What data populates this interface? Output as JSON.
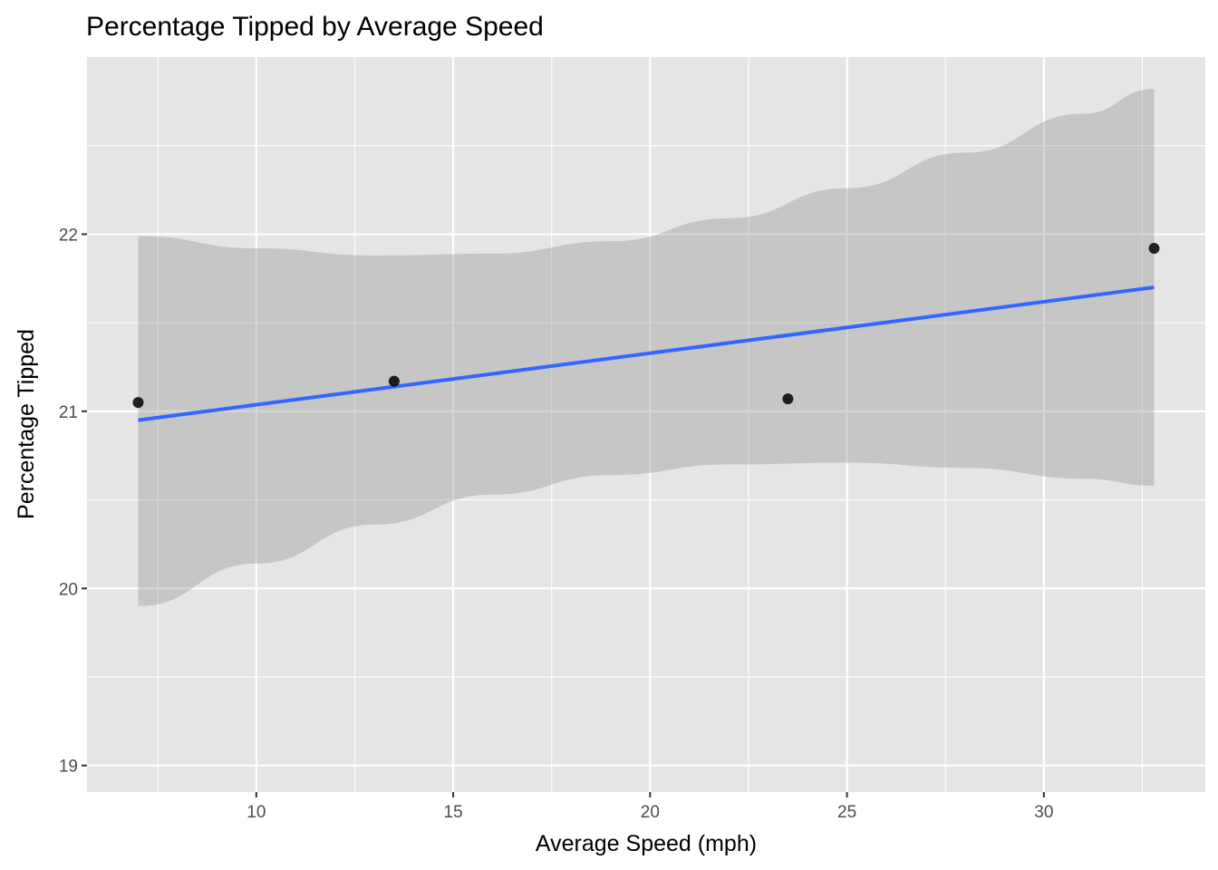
{
  "chart_data": {
    "type": "scatter",
    "title": "Percentage Tipped by Average Speed",
    "xlabel": "Average Speed (mph)",
    "ylabel": "Percentage Tipped",
    "xlim": [
      5.7,
      34.1
    ],
    "ylim": [
      18.85,
      23.0
    ],
    "x_ticks": [
      10,
      15,
      20,
      25,
      30
    ],
    "x_tick_labels": [
      "10",
      "15",
      "20",
      "25",
      "30"
    ],
    "y_ticks": [
      19,
      20,
      21,
      22
    ],
    "y_tick_labels": [
      "19",
      "20",
      "21",
      "22"
    ],
    "x_minor_ticks": [
      7.5,
      12.5,
      17.5,
      22.5,
      27.5,
      32.5
    ],
    "y_minor_ticks": [
      19.5,
      20.5,
      21.5,
      22.5
    ],
    "grid": true,
    "points": [
      {
        "x": 7.0,
        "y": 21.05
      },
      {
        "x": 13.5,
        "y": 21.17
      },
      {
        "x": 23.5,
        "y": 21.07
      },
      {
        "x": 32.8,
        "y": 21.92
      }
    ],
    "trend_line": {
      "method": "lm",
      "x": [
        7.0,
        32.8
      ],
      "y": [
        20.95,
        21.7
      ],
      "color": "#3366ff"
    },
    "confidence_band": {
      "x": [
        7.0,
        10.0,
        13.0,
        16.0,
        19.0,
        22.0,
        25.0,
        28.0,
        31.0,
        32.8
      ],
      "upper": [
        21.99,
        21.92,
        21.88,
        21.89,
        21.96,
        22.09,
        22.26,
        22.46,
        22.68,
        22.82
      ],
      "lower": [
        19.9,
        20.14,
        20.36,
        20.53,
        20.64,
        20.7,
        20.71,
        20.68,
        20.62,
        20.58
      ],
      "color": "#999999"
    },
    "colors": {
      "panel_background": "#e5e5e5",
      "grid": "#ffffff",
      "point": "#000000"
    }
  }
}
